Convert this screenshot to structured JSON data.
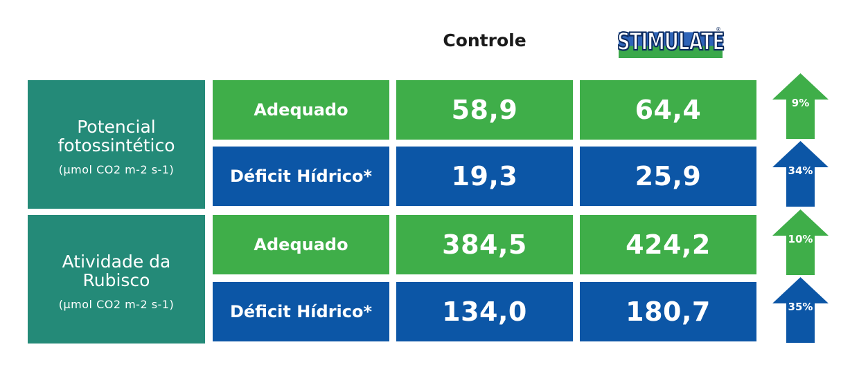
{
  "header": {
    "controle_label": "Controle",
    "brand_logo_text": "STIMULATE",
    "brand_logo_mark": "®"
  },
  "colors": {
    "teal": "#248a78",
    "green": "#3fae49",
    "blue": "#0c56a6"
  },
  "groups": [
    {
      "title_line1": "Potencial",
      "title_line2": "fotossintético",
      "unit": "(µmol CO2 m-2 s-1)",
      "rows": [
        {
          "condition": "Adequado",
          "controle": "58,9",
          "stimulate": "64,4",
          "increase": "9%",
          "color": "green"
        },
        {
          "condition": "Déficit Hídrico*",
          "controle": "19,3",
          "stimulate": "25,9",
          "increase": "34%",
          "color": "blue"
        }
      ]
    },
    {
      "title_line1": "Atividade da",
      "title_line2": "Rubisco",
      "unit": "(µmol CO2 m-2 s-1)",
      "rows": [
        {
          "condition": "Adequado",
          "controle": "384,5",
          "stimulate": "424,2",
          "increase": "10%",
          "color": "green"
        },
        {
          "condition": "Déficit Hídrico*",
          "controle": "134,0",
          "stimulate": "180,7",
          "increase": "35%",
          "color": "blue"
        }
      ]
    }
  ],
  "chart_data": {
    "type": "table",
    "columns": [
      "Controle",
      "STIMULATE"
    ],
    "rows": [
      {
        "group": "Potencial fotossintético (µmol CO2 m-2 s-1)",
        "condition": "Adequado",
        "Controle": 58.9,
        "STIMULATE": 64.4,
        "increase_pct": 9
      },
      {
        "group": "Potencial fotossintético (µmol CO2 m-2 s-1)",
        "condition": "Déficit Hídrico*",
        "Controle": 19.3,
        "STIMULATE": 25.9,
        "increase_pct": 34
      },
      {
        "group": "Atividade da Rubisco (µmol CO2 m-2 s-1)",
        "condition": "Adequado",
        "Controle": 384.5,
        "STIMULATE": 424.2,
        "increase_pct": 10
      },
      {
        "group": "Atividade da Rubisco (µmol CO2 m-2 s-1)",
        "condition": "Déficit Hídrico*",
        "Controle": 134.0,
        "STIMULATE": 180.7,
        "increase_pct": 35
      }
    ]
  }
}
